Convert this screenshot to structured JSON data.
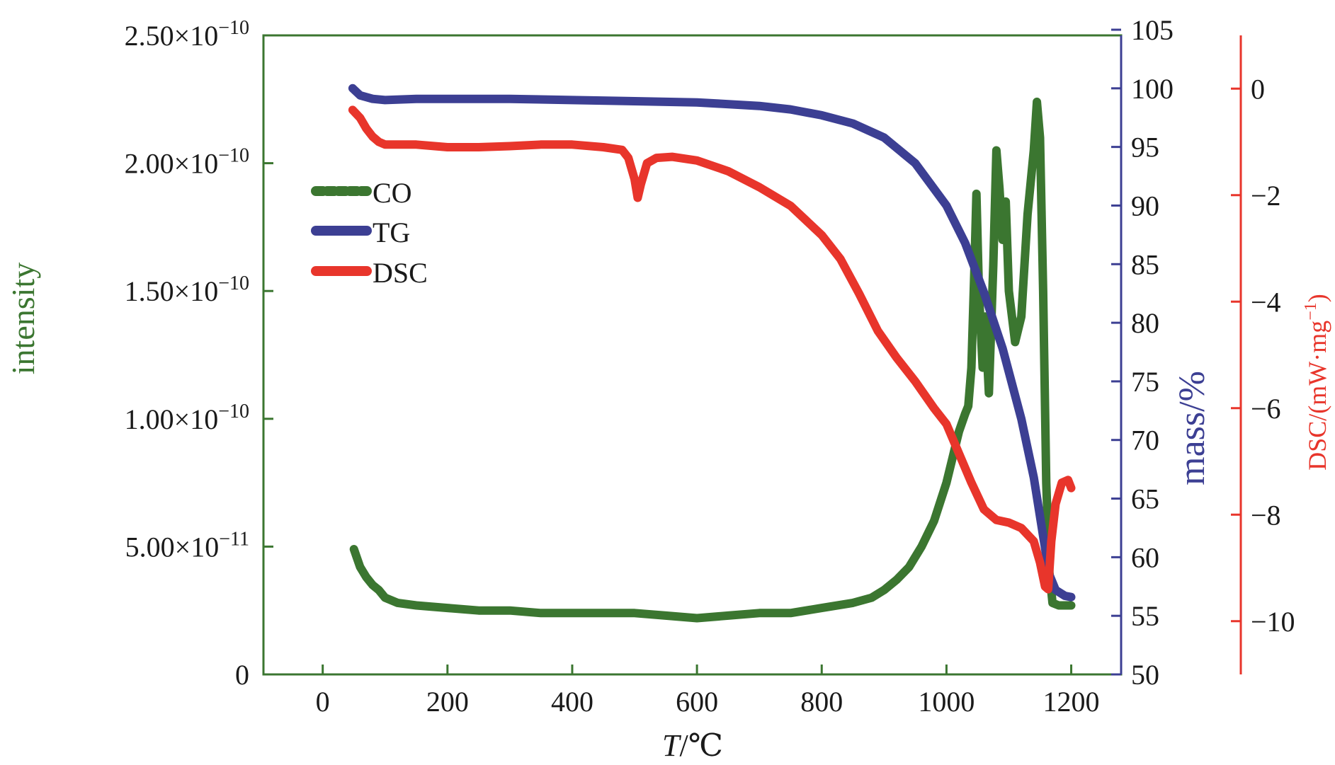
{
  "chart_data": {
    "type": "line",
    "x": {
      "label_var": "T",
      "label_unit": "/℃",
      "range": [
        -95,
        1280
      ],
      "ticks": [
        0,
        200,
        400,
        600,
        800,
        1000,
        1200
      ],
      "tick_labels": [
        "0",
        "200",
        "400",
        "600",
        "800",
        "1000",
        "1200"
      ]
    },
    "y_left": {
      "label": "intensity",
      "range": [
        0,
        2.5e-10
      ],
      "ticks": [
        0,
        5e-11,
        1e-10,
        1.5e-10,
        2e-10,
        2.5e-10
      ],
      "tick_labels": [
        {
          "mantissa": "0",
          "exp": ""
        },
        {
          "mantissa": "5.00×10",
          "exp": "−11"
        },
        {
          "mantissa": "1.00×10",
          "exp": "−10"
        },
        {
          "mantissa": "1.50×10",
          "exp": "−10"
        },
        {
          "mantissa": "2.00×10",
          "exp": "−10"
        },
        {
          "mantissa": "2.50×10",
          "exp": "−10"
        }
      ],
      "color": "#3b7630"
    },
    "y_mass": {
      "label": "mass/%",
      "range": [
        50,
        105
      ],
      "ticks": [
        50,
        55,
        60,
        65,
        70,
        75,
        80,
        85,
        90,
        95,
        100,
        105
      ],
      "tick_labels": [
        "50",
        "55",
        "60",
        "65",
        "70",
        "75",
        "80",
        "85",
        "90",
        "95",
        "100",
        "105"
      ],
      "color": "#3c3f93"
    },
    "y_dsc": {
      "label": "DSC/(mW·mg",
      "label_exp": "−1",
      "label_close": ")",
      "range": [
        -11,
        1
      ],
      "ticks": [
        0,
        -2,
        -4,
        -6,
        -8,
        -10
      ],
      "tick_labels": [
        "0",
        "−2",
        "−4",
        "−6",
        "−8",
        "−10"
      ],
      "color": "#e8352b"
    },
    "legend": {
      "position": "upper-left",
      "entries": [
        {
          "name": "CO",
          "color": "#3b7630"
        },
        {
          "name": "TG",
          "color": "#3c3f93"
        },
        {
          "name": "DSC",
          "color": "#e8352b"
        }
      ]
    },
    "series": [
      {
        "name": "CO",
        "axis": "left",
        "color": "#3b7630",
        "points": [
          [
            50,
            4.9e-11
          ],
          [
            60,
            4.2e-11
          ],
          [
            70,
            3.8e-11
          ],
          [
            80,
            3.5e-11
          ],
          [
            90,
            3.3e-11
          ],
          [
            100,
            3e-11
          ],
          [
            120,
            2.8e-11
          ],
          [
            150,
            2.7e-11
          ],
          [
            200,
            2.6e-11
          ],
          [
            250,
            2.5e-11
          ],
          [
            300,
            2.5e-11
          ],
          [
            350,
            2.4e-11
          ],
          [
            400,
            2.4e-11
          ],
          [
            450,
            2.4e-11
          ],
          [
            500,
            2.4e-11
          ],
          [
            550,
            2.3e-11
          ],
          [
            600,
            2.2e-11
          ],
          [
            650,
            2.3e-11
          ],
          [
            700,
            2.4e-11
          ],
          [
            750,
            2.4e-11
          ],
          [
            800,
            2.6e-11
          ],
          [
            850,
            2.8e-11
          ],
          [
            880,
            3e-11
          ],
          [
            900,
            3.3e-11
          ],
          [
            920,
            3.7e-11
          ],
          [
            940,
            4.2e-11
          ],
          [
            960,
            5e-11
          ],
          [
            980,
            6e-11
          ],
          [
            1000,
            7.5e-11
          ],
          [
            1010,
            8.5e-11
          ],
          [
            1020,
            9.5e-11
          ],
          [
            1030,
            1.02e-10
          ],
          [
            1035,
            1.05e-10
          ],
          [
            1040,
            1.2e-10
          ],
          [
            1045,
            1.6e-10
          ],
          [
            1048,
            1.88e-10
          ],
          [
            1052,
            1.5e-10
          ],
          [
            1058,
            1.2e-10
          ],
          [
            1062,
            1.4e-10
          ],
          [
            1068,
            1.1e-10
          ],
          [
            1075,
            1.6e-10
          ],
          [
            1080,
            2.05e-10
          ],
          [
            1085,
            1.9e-10
          ],
          [
            1090,
            1.7e-10
          ],
          [
            1095,
            1.85e-10
          ],
          [
            1100,
            1.5e-10
          ],
          [
            1110,
            1.3e-10
          ],
          [
            1120,
            1.4e-10
          ],
          [
            1130,
            1.8e-10
          ],
          [
            1140,
            2.05e-10
          ],
          [
            1145,
            2.24e-10
          ],
          [
            1150,
            2.1e-10
          ],
          [
            1155,
            1.5e-10
          ],
          [
            1160,
            7.5e-11
          ],
          [
            1165,
            4e-11
          ],
          [
            1170,
            2.8e-11
          ],
          [
            1180,
            2.7e-11
          ],
          [
            1200,
            2.7e-11
          ]
        ]
      },
      {
        "name": "TG",
        "axis": "mass",
        "color": "#3c3f93",
        "points": [
          [
            48,
            100
          ],
          [
            60,
            99.4
          ],
          [
            80,
            99.1
          ],
          [
            100,
            99.0
          ],
          [
            150,
            99.1
          ],
          [
            200,
            99.1
          ],
          [
            300,
            99.1
          ],
          [
            400,
            99.0
          ],
          [
            500,
            98.9
          ],
          [
            600,
            98.8
          ],
          [
            700,
            98.5
          ],
          [
            750,
            98.2
          ],
          [
            800,
            97.7
          ],
          [
            850,
            97.0
          ],
          [
            900,
            95.8
          ],
          [
            950,
            93.6
          ],
          [
            1000,
            90.0
          ],
          [
            1030,
            86.8
          ],
          [
            1060,
            82.6
          ],
          [
            1090,
            77.8
          ],
          [
            1120,
            71.8
          ],
          [
            1140,
            66.8
          ],
          [
            1155,
            61.8
          ],
          [
            1165,
            58.5
          ],
          [
            1175,
            57.2
          ],
          [
            1190,
            56.7
          ],
          [
            1200,
            56.6
          ]
        ]
      },
      {
        "name": "DSC",
        "axis": "dsc",
        "color": "#e8352b",
        "points": [
          [
            48,
            -0.4
          ],
          [
            60,
            -0.55
          ],
          [
            70,
            -0.75
          ],
          [
            80,
            -0.9
          ],
          [
            90,
            -1.0
          ],
          [
            100,
            -1.05
          ],
          [
            150,
            -1.05
          ],
          [
            200,
            -1.1
          ],
          [
            250,
            -1.1
          ],
          [
            300,
            -1.08
          ],
          [
            350,
            -1.05
          ],
          [
            400,
            -1.05
          ],
          [
            450,
            -1.1
          ],
          [
            480,
            -1.15
          ],
          [
            490,
            -1.3
          ],
          [
            500,
            -1.7
          ],
          [
            505,
            -2.05
          ],
          [
            510,
            -1.8
          ],
          [
            520,
            -1.4
          ],
          [
            535,
            -1.3
          ],
          [
            560,
            -1.28
          ],
          [
            600,
            -1.35
          ],
          [
            650,
            -1.55
          ],
          [
            700,
            -1.85
          ],
          [
            750,
            -2.2
          ],
          [
            800,
            -2.75
          ],
          [
            830,
            -3.2
          ],
          [
            860,
            -3.85
          ],
          [
            890,
            -4.55
          ],
          [
            920,
            -5.05
          ],
          [
            950,
            -5.5
          ],
          [
            980,
            -6.0
          ],
          [
            1000,
            -6.3
          ],
          [
            1020,
            -6.85
          ],
          [
            1040,
            -7.4
          ],
          [
            1060,
            -7.9
          ],
          [
            1080,
            -8.1
          ],
          [
            1100,
            -8.15
          ],
          [
            1120,
            -8.25
          ],
          [
            1140,
            -8.5
          ],
          [
            1150,
            -8.9
          ],
          [
            1158,
            -9.35
          ],
          [
            1163,
            -9.4
          ],
          [
            1168,
            -8.5
          ],
          [
            1175,
            -7.8
          ],
          [
            1185,
            -7.4
          ],
          [
            1195,
            -7.35
          ],
          [
            1200,
            -7.5
          ]
        ]
      }
    ]
  }
}
